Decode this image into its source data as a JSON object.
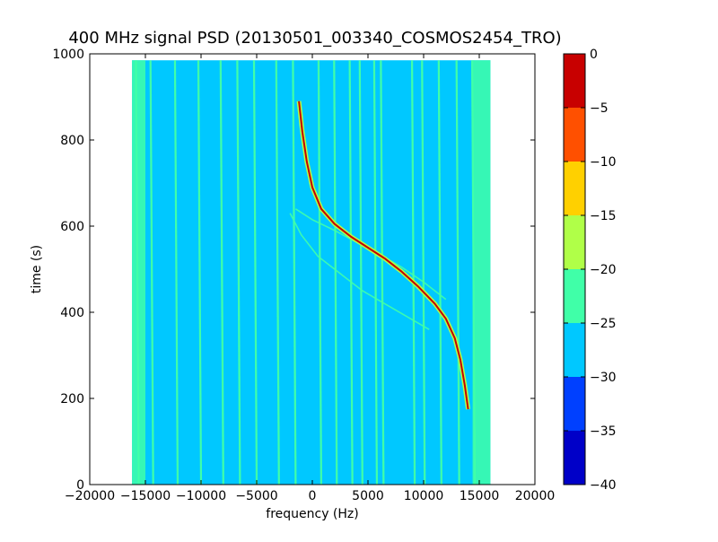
{
  "chart_data": {
    "type": "heatmap",
    "title": "400 MHz signal PSD (20130501_003340_COSMOS2454_TRO)",
    "xlabel": "frequency (Hz)",
    "ylabel": "time (s)",
    "xlim": [
      -20000,
      20000
    ],
    "ylim": [
      0,
      1000
    ],
    "xticks": [
      -20000,
      -15000,
      -10000,
      -5000,
      0,
      5000,
      10000,
      15000,
      20000
    ],
    "yticks": [
      0,
      200,
      400,
      600,
      800,
      1000
    ],
    "data_extent": {
      "frequency": [
        -16200,
        16000
      ],
      "time": [
        0,
        985
      ]
    },
    "background_level_range": [
      -30,
      -25
    ],
    "edge_level_range": [
      -25,
      -20
    ],
    "colorbar": {
      "levels": [
        -40,
        -35,
        -30,
        -25,
        -20,
        -15,
        -10,
        -5,
        0
      ],
      "ticks": [
        0,
        -5,
        -10,
        -15,
        -20,
        -25,
        -30,
        -35,
        -40
      ],
      "colors": [
        "#0000c8",
        "#0040ff",
        "#00c8ff",
        "#40ffa8",
        "#b0ff48",
        "#ffd000",
        "#ff5000",
        "#c80000"
      ]
    },
    "carrier_lines": {
      "level_range": [
        -25,
        -20
      ],
      "frequencies": [
        -15600,
        -14300,
        -12100,
        -10000,
        -8000,
        -6500,
        -5000,
        -3000,
        -1500,
        800,
        2200,
        3600,
        4500,
        5800,
        6400,
        9200,
        10100,
        11600,
        13200,
        14600
      ]
    },
    "doppler_trace": {
      "level": 0,
      "points": [
        [
          14000,
          175
        ],
        [
          13700,
          230
        ],
        [
          13300,
          290
        ],
        [
          12800,
          340
        ],
        [
          12000,
          385
        ],
        [
          11000,
          420
        ],
        [
          9500,
          460
        ],
        [
          8000,
          495
        ],
        [
          6500,
          525
        ],
        [
          5000,
          550
        ],
        [
          3500,
          575
        ],
        [
          2000,
          605
        ],
        [
          800,
          640
        ],
        [
          0,
          690
        ],
        [
          -500,
          750
        ],
        [
          -900,
          820
        ],
        [
          -1200,
          890
        ]
      ]
    },
    "ghost_traces": [
      {
        "points": [
          [
            12000,
            430
          ],
          [
            10000,
            470
          ],
          [
            8000,
            505
          ],
          [
            6000,
            535
          ],
          [
            4000,
            562
          ],
          [
            2000,
            590
          ],
          [
            0,
            615
          ],
          [
            -1500,
            640
          ]
        ]
      },
      {
        "points": [
          [
            10500,
            360
          ],
          [
            8500,
            390
          ],
          [
            6500,
            420
          ],
          [
            4500,
            450
          ],
          [
            2500,
            490
          ],
          [
            500,
            530
          ],
          [
            -1000,
            580
          ],
          [
            -2000,
            630
          ]
        ]
      }
    ]
  }
}
